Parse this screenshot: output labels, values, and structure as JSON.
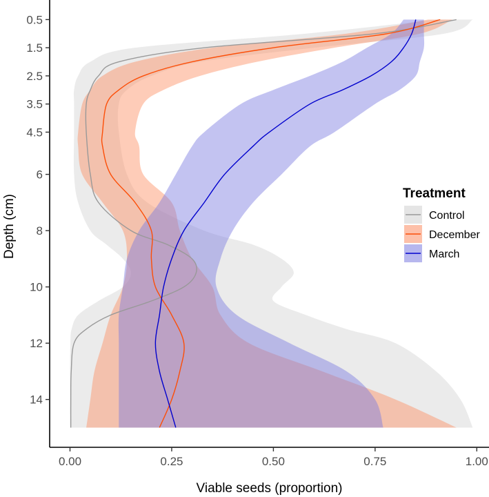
{
  "chart_data": {
    "type": "line",
    "title": "",
    "xlabel": "Viable seeds (proportion)",
    "ylabel": "Depth (cm)",
    "xlim": [
      -0.05,
      1.03
    ],
    "ylim": [
      0.0,
      15.7
    ],
    "y_reversed": true,
    "grid": false,
    "x_ticks": [
      0.0,
      0.25,
      0.5,
      0.75,
      1.0
    ],
    "x_tick_labels": [
      "0.00",
      "0.25",
      "0.50",
      "0.75",
      "1.00"
    ],
    "y_ticks": [
      0.5,
      1.5,
      2.5,
      3.5,
      4.5,
      6,
      8,
      10,
      12,
      14
    ],
    "y_tick_labels": [
      "0.5",
      "1.5",
      "2.5",
      "3.5",
      "4.5",
      "6",
      "8",
      "10",
      "12",
      "14"
    ],
    "legend": {
      "title": "Treatment",
      "placement": "right",
      "entries": [
        "Control",
        "December",
        "March"
      ]
    },
    "series": [
      {
        "name": "Control",
        "line_color": "#999999",
        "band_color": "#cccccc",
        "band_opacity": 0.4,
        "depth": [
          0.5,
          1.0,
          1.5,
          2.0,
          2.5,
          3.0,
          3.5,
          4.5,
          6.0,
          7.0,
          8.0,
          8.5,
          9.0,
          9.5,
          10.0,
          10.5,
          11.0,
          11.5,
          12.0,
          13.0,
          14.0,
          15.0
        ],
        "estimate": [
          0.95,
          0.75,
          0.33,
          0.12,
          0.07,
          0.05,
          0.04,
          0.04,
          0.05,
          0.07,
          0.15,
          0.24,
          0.3,
          0.31,
          0.28,
          0.2,
          0.1,
          0.04,
          0.01,
          0.003,
          0.002,
          0.002
        ],
        "lower": [
          0.9,
          0.58,
          0.16,
          0.05,
          0.02,
          0.01,
          0.01,
          0.01,
          0.01,
          0.02,
          0.05,
          0.09,
          0.13,
          0.15,
          0.13,
          0.07,
          0.02,
          0.004,
          0.001,
          0.0,
          0.0,
          0.0
        ],
        "upper": [
          0.99,
          0.92,
          0.6,
          0.32,
          0.2,
          0.14,
          0.12,
          0.12,
          0.14,
          0.19,
          0.33,
          0.45,
          0.52,
          0.55,
          0.52,
          0.5,
          0.58,
          0.68,
          0.8,
          0.9,
          0.96,
          0.99
        ]
      },
      {
        "name": "December",
        "line_color": "#fc4e07",
        "band_color": "#fc8d62",
        "band_opacity": 0.45,
        "depth": [
          0.5,
          1.0,
          1.5,
          2.0,
          2.5,
          3.0,
          3.5,
          4.5,
          5.0,
          6.0,
          7.0,
          8.0,
          9.0,
          10.0,
          11.0,
          12.0,
          13.0,
          14.0,
          15.0
        ],
        "estimate": [
          0.91,
          0.78,
          0.5,
          0.3,
          0.18,
          0.12,
          0.09,
          0.08,
          0.08,
          0.1,
          0.16,
          0.2,
          0.2,
          0.21,
          0.25,
          0.28,
          0.27,
          0.25,
          0.22
        ],
        "lower": [
          0.88,
          0.68,
          0.35,
          0.16,
          0.08,
          0.05,
          0.03,
          0.02,
          0.02,
          0.03,
          0.08,
          0.13,
          0.14,
          0.13,
          0.1,
          0.08,
          0.06,
          0.05,
          0.04
        ],
        "upper": [
          0.94,
          0.86,
          0.65,
          0.46,
          0.32,
          0.23,
          0.18,
          0.16,
          0.17,
          0.18,
          0.25,
          0.27,
          0.3,
          0.35,
          0.37,
          0.44,
          0.62,
          0.8,
          0.95
        ]
      },
      {
        "name": "March",
        "line_color": "#0000cd",
        "band_color": "#7b7be0",
        "band_opacity": 0.45,
        "depth": [
          0.5,
          1.0,
          1.5,
          2.0,
          2.5,
          3.0,
          3.5,
          4.5,
          5.0,
          6.0,
          7.0,
          8.0,
          9.0,
          10.0,
          11.0,
          12.0,
          13.0,
          14.0,
          15.0
        ],
        "estimate": [
          0.85,
          0.84,
          0.82,
          0.79,
          0.74,
          0.67,
          0.59,
          0.49,
          0.45,
          0.38,
          0.33,
          0.28,
          0.25,
          0.23,
          0.22,
          0.21,
          0.22,
          0.24,
          0.26
        ],
        "lower": [
          0.82,
          0.79,
          0.73,
          0.67,
          0.59,
          0.5,
          0.42,
          0.33,
          0.3,
          0.26,
          0.22,
          0.17,
          0.14,
          0.13,
          0.12,
          0.12,
          0.12,
          0.12,
          0.12
        ],
        "upper": [
          0.87,
          0.87,
          0.87,
          0.86,
          0.85,
          0.81,
          0.75,
          0.65,
          0.59,
          0.52,
          0.45,
          0.4,
          0.37,
          0.36,
          0.41,
          0.54,
          0.68,
          0.75,
          0.77
        ]
      }
    ]
  }
}
